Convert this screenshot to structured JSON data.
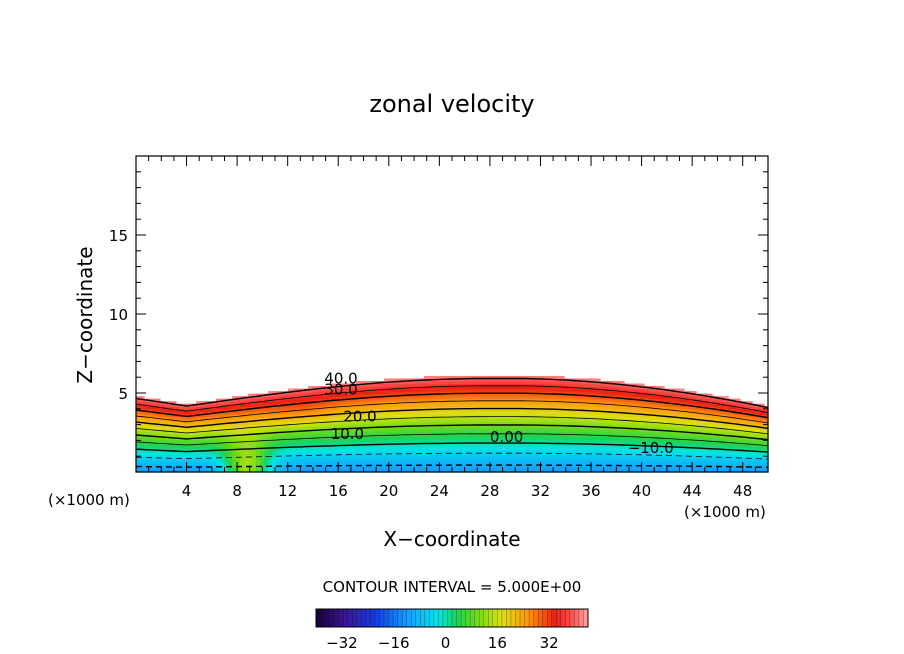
{
  "chart_data": {
    "type": "contour",
    "title": "zonal velocity",
    "xlabel": "X−coordinate",
    "ylabel": "Z−coordinate",
    "x_unit_left": "(×1000 m)",
    "x_unit_right": "(×1000 m)",
    "xlim": [
      0,
      50
    ],
    "ylim": [
      0,
      20
    ],
    "x_ticks": [
      4,
      8,
      12,
      16,
      20,
      24,
      28,
      32,
      36,
      40,
      44,
      48
    ],
    "x_tick_labels": [
      "4",
      "8",
      "12",
      "16",
      "20",
      "24",
      "28",
      "32",
      "36",
      "40",
      "44",
      "48"
    ],
    "y_ticks": [
      5,
      10,
      15
    ],
    "y_tick_labels": [
      "5",
      "10",
      "15"
    ],
    "contour_interval_label": "CONTOUR INTERVAL = 5.000E+00",
    "contour_interval": 5.0,
    "contour_labels": [
      {
        "text": "40.0",
        "x": 14.9,
        "z": 5.6
      },
      {
        "text": "30.0",
        "x": 14.9,
        "z": 4.9
      },
      {
        "text": "20.0",
        "x": 16.4,
        "z": 3.2
      },
      {
        "text": "10.0",
        "x": 15.4,
        "z": 2.1
      },
      {
        "text": "0.00",
        "x": 28.0,
        "z": 1.9
      },
      {
        "text": "−10.0",
        "x": 38.9,
        "z": 1.2
      }
    ],
    "colorbar": {
      "min": -40,
      "max": 44,
      "ticks": [
        -32,
        -16,
        0,
        16,
        32
      ],
      "tick_labels": [
        "−32",
        "−16",
        "0",
        "16",
        "32"
      ]
    },
    "colors": {
      "deep_negative": "#2a1a7a",
      "negative": "#1ea0ff",
      "zero": "#00e6e6",
      "low_positive": "#35d14a",
      "mid_positive": "#d8e020",
      "high_positive": "#ff8a10",
      "peak_positive": "#e81818",
      "max_positive": "#ff8080"
    }
  }
}
